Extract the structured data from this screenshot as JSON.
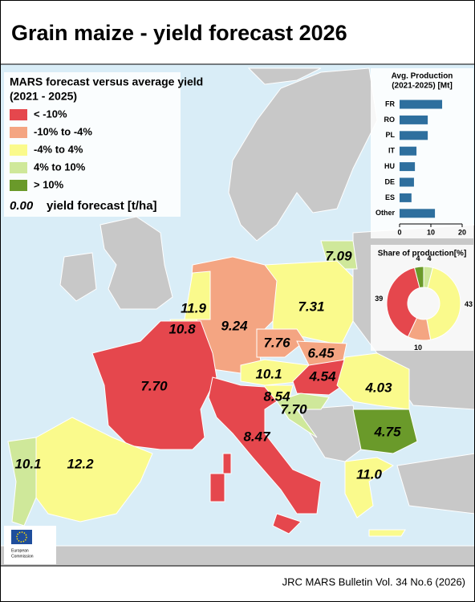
{
  "title": "Grain maize - yield forecast 2026",
  "legend": {
    "title_lines": [
      "MARS forecast versus average yield",
      "(2021 - 2025)"
    ],
    "items": [
      {
        "label": "< -10%",
        "color": "#e5474d"
      },
      {
        "label": "-10% to -4%",
        "color": "#f4a582"
      },
      {
        "label": "-4% to 4%",
        "color": "#fafa8c"
      },
      {
        "label": "4% to 10%",
        "color": "#cfe89a"
      },
      {
        "label": "> 10%",
        "color": "#6a9a2a"
      }
    ],
    "sample": {
      "value_text": "0.00",
      "text": "yield forecast [t/ha]"
    }
  },
  "regions": [
    {
      "id": "LT",
      "label": "7.09",
      "color": "#cfe89a"
    },
    {
      "id": "PL",
      "label": "7.31",
      "color": "#fafa8c"
    },
    {
      "id": "DE",
      "label": "9.24",
      "color": "#f4a582"
    },
    {
      "id": "NL",
      "label": "11.9",
      "color": "#fafa8c"
    },
    {
      "id": "BE",
      "label": "10.8",
      "color": "#fafa8c"
    },
    {
      "id": "FR",
      "label": "7.70",
      "color": "#e5474d"
    },
    {
      "id": "CZ",
      "label": "7.76",
      "color": "#f4a582"
    },
    {
      "id": "SK",
      "label": "6.45",
      "color": "#f4a582"
    },
    {
      "id": "AT",
      "label": "10.1",
      "color": "#fafa8c"
    },
    {
      "id": "HU",
      "label": "4.54",
      "color": "#e5474d"
    },
    {
      "id": "SI",
      "label": "8.54",
      "color": "#fafa8c"
    },
    {
      "id": "HR",
      "label": "7.70",
      "color": "#cfe89a"
    },
    {
      "id": "IT",
      "label": "8.47",
      "color": "#e5474d"
    },
    {
      "id": "RO",
      "label": "4.03",
      "color": "#fafa8c"
    },
    {
      "id": "BG",
      "label": "4.75",
      "color": "#6a9a2a"
    },
    {
      "id": "GR",
      "label": "11.0",
      "color": "#fafa8c"
    },
    {
      "id": "PT",
      "label": "10.1",
      "color": "#cfe89a"
    },
    {
      "id": "ES",
      "label": "12.2",
      "color": "#fafa8c"
    }
  ],
  "inset_bar": {
    "title_lines": [
      "Avg. Production",
      "(2021-2025) [Mt]"
    ],
    "categories": [
      "FR",
      "RO",
      "PL",
      "IT",
      "HU",
      "DE",
      "ES",
      "Other"
    ],
    "values": [
      13.6,
      9,
      9,
      5.4,
      4.9,
      4.6,
      3.8,
      11.3
    ],
    "color": "#2e6f9e",
    "xlim": [
      0,
      20
    ],
    "xticks": [
      0,
      10,
      20
    ]
  },
  "inset_pie": {
    "title": "Share of production[%]",
    "values": [
      4,
      43,
      10,
      39,
      4
    ],
    "colors": [
      "#cfe89a",
      "#fafa8c",
      "#f4a582",
      "#e5474d",
      "#6a9a2a"
    ]
  },
  "logo_text": [
    "European",
    "Commission"
  ],
  "footer": "JRC MARS Bulletin Vol. 34 No.6 (2026)"
}
